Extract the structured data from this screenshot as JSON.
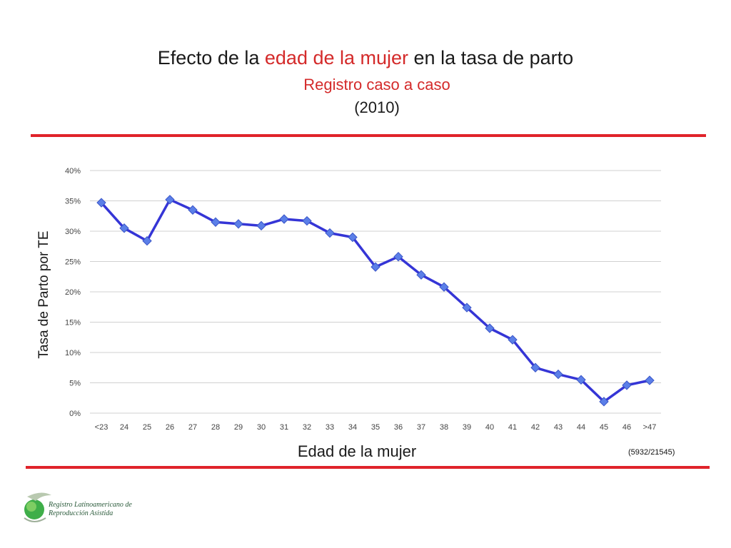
{
  "title": {
    "prefix": "Efecto de la ",
    "highlight": "edad de la mujer",
    "suffix": " en la tasa de parto",
    "highlight_color": "#d42a2a"
  },
  "subtitle": "Registro caso a caso",
  "year": "(2010)",
  "ylabel": "Tasa de Parto por TE",
  "xlabel": "Edad de la mujer",
  "note": "(5932/21545)",
  "logo": {
    "icon": "globe-leaf-icon",
    "line1": "Registro Latinoamericano de",
    "line2": "Reproducción Asistida"
  },
  "colors": {
    "series": "#3535d6",
    "marker": "#5b7fe8",
    "rule": "#e0232a",
    "grid": "#d0d0d0"
  },
  "chart_data": {
    "type": "line",
    "categories": [
      "<23",
      "24",
      "25",
      "26",
      "27",
      "28",
      "29",
      "30",
      "31",
      "32",
      "33",
      "34",
      "35",
      "36",
      "37",
      "38",
      "39",
      "40",
      "41",
      "42",
      "43",
      "44",
      "45",
      "46",
      ">47"
    ],
    "series": [
      {
        "values": [
          34.7,
          30.5,
          28.4,
          35.2,
          33.5,
          31.5,
          31.2,
          30.9,
          32.0,
          31.7,
          29.7,
          29.0,
          24.1,
          25.8,
          22.8,
          20.8,
          17.4,
          14.0,
          12.1,
          7.5,
          6.4,
          5.5,
          1.9,
          4.6,
          5.4
        ]
      }
    ],
    "yticks": [
      "0%",
      "5%",
      "10%",
      "15%",
      "20%",
      "25%",
      "30%",
      "35%",
      "40%"
    ],
    "ylim": [
      0,
      40
    ],
    "grid": true,
    "xlabel": "Edad de la mujer",
    "ylabel": "Tasa de Parto por TE"
  }
}
